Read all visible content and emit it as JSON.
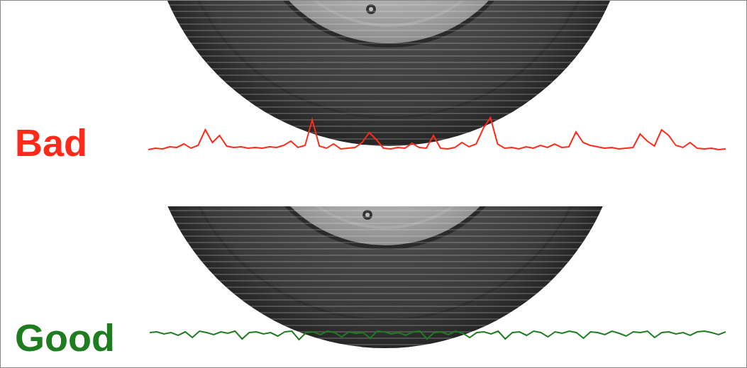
{
  "chart_data": [
    {
      "type": "line",
      "title": "Bad",
      "color": "#ff2a1a",
      "grid": false,
      "tick_labels": false,
      "xlim": [
        0,
        810
      ],
      "ylim": [
        -5,
        50
      ],
      "x": [
        0,
        10,
        20,
        30,
        40,
        50,
        60,
        70,
        80,
        90,
        100,
        110,
        120,
        130,
        140,
        150,
        160,
        170,
        180,
        190,
        200,
        210,
        220,
        230,
        240,
        250,
        260,
        270,
        280,
        290,
        300,
        310,
        320,
        330,
        340,
        350,
        360,
        370,
        380,
        390,
        400,
        410,
        420,
        430,
        440,
        450,
        460,
        470,
        480,
        490,
        500,
        510,
        520,
        530,
        540,
        550,
        560,
        570,
        580,
        590,
        600,
        610,
        620,
        630,
        640,
        650,
        660,
        670,
        680,
        690,
        700,
        710,
        720,
        730,
        740,
        750,
        760,
        770,
        780,
        790,
        800,
        810
      ],
      "values": [
        0,
        2,
        1,
        4,
        3,
        8,
        2,
        6,
        28,
        10,
        20,
        5,
        3,
        4,
        2,
        3,
        2,
        4,
        3,
        6,
        12,
        3,
        6,
        42,
        5,
        2,
        8,
        1,
        2,
        3,
        10,
        24,
        14,
        2,
        1,
        3,
        2,
        9,
        3,
        2,
        20,
        2,
        1,
        3,
        10,
        4,
        8,
        30,
        45,
        8,
        2,
        3,
        1,
        4,
        2,
        6,
        3,
        8,
        3,
        4,
        25,
        10,
        6,
        4,
        2,
        3,
        1,
        2,
        3,
        22,
        12,
        5,
        28,
        20,
        6,
        3,
        10,
        2,
        1,
        2,
        0,
        1
      ]
    },
    {
      "type": "line",
      "title": "Good",
      "color": "#1e7d1e",
      "grid": false,
      "tick_labels": false,
      "xlim": [
        0,
        810
      ],
      "ylim": [
        -17,
        13
      ],
      "x": [
        0,
        10,
        20,
        30,
        40,
        50,
        60,
        70,
        80,
        90,
        100,
        110,
        120,
        130,
        140,
        150,
        160,
        170,
        180,
        190,
        200,
        210,
        220,
        230,
        240,
        250,
        260,
        270,
        280,
        290,
        300,
        310,
        320,
        330,
        340,
        350,
        360,
        370,
        380,
        390,
        400,
        410,
        420,
        430,
        440,
        450,
        460,
        470,
        480,
        490,
        500,
        510,
        520,
        530,
        540,
        550,
        560,
        570,
        580,
        590,
        600,
        610,
        620,
        630,
        640,
        650,
        660,
        670,
        680,
        690,
        700,
        710,
        720,
        730,
        740,
        750,
        760,
        770,
        780,
        790,
        800,
        810
      ],
      "values": [
        0,
        1,
        -2,
        0,
        -4,
        1,
        -7,
        2,
        0,
        -3,
        1,
        -1,
        2,
        -9,
        0,
        1,
        -2,
        0,
        -5,
        1,
        2,
        -10,
        0,
        1,
        -3,
        2,
        0,
        -6,
        1,
        -1,
        0,
        -8,
        2,
        1,
        -2,
        0,
        -4,
        1,
        2,
        -9,
        0,
        1,
        -3,
        2,
        -1,
        -7,
        0,
        1,
        -2,
        2,
        -9,
        0,
        1,
        -4,
        2,
        0,
        -6,
        1,
        -1,
        2,
        0,
        -8,
        1,
        0,
        -3,
        2,
        -1,
        -5,
        1,
        0,
        2,
        -7,
        0,
        1,
        -2,
        0,
        -4,
        1,
        2,
        0,
        -3,
        1
      ]
    }
  ]
}
